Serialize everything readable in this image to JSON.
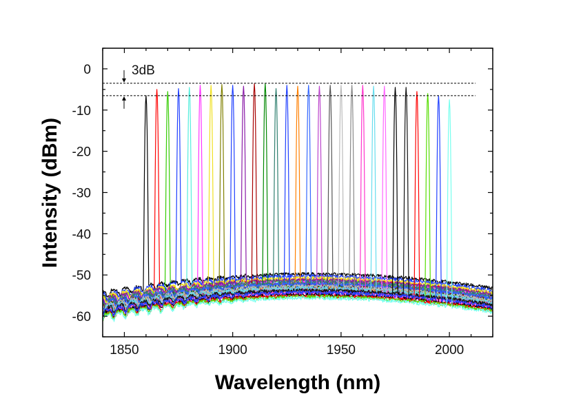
{
  "chart_data": {
    "type": "line",
    "title": "",
    "xlabel": "Wavelength (nm)",
    "ylabel": "Intensity (dBm)",
    "xlim": [
      1840,
      2020
    ],
    "ylim": [
      -65,
      5
    ],
    "x_ticks": [
      1850,
      1900,
      1950,
      2000
    ],
    "y_ticks": [
      0,
      -10,
      -20,
      -30,
      -40,
      -50,
      -60
    ],
    "x_minor_step": 10,
    "y_minor_step": 5,
    "grid": false,
    "annotation": {
      "text": "3dB",
      "upper_level_dbm": -3.5,
      "lower_level_dbm": -6.5,
      "line_x_range": [
        1840,
        2012
      ]
    },
    "series": [
      {
        "name": "1860 nm",
        "center": 1860,
        "peak": -6.5,
        "color": "#000000"
      },
      {
        "name": "1865 nm",
        "center": 1865,
        "peak": -5.0,
        "color": "#ff0000"
      },
      {
        "name": "1870 nm",
        "center": 1870,
        "peak": -5.5,
        "color": "#33cc00"
      },
      {
        "name": "1875 nm",
        "center": 1875,
        "peak": -4.8,
        "color": "#1f3fff"
      },
      {
        "name": "1880 nm",
        "center": 1880,
        "peak": -4.5,
        "color": "#55eedd"
      },
      {
        "name": "1885 nm",
        "center": 1885,
        "peak": -4.0,
        "color": "#ff33ff"
      },
      {
        "name": "1890 nm",
        "center": 1890,
        "peak": -4.0,
        "color": "#f0e020"
      },
      {
        "name": "1895 nm",
        "center": 1895,
        "peak": -3.8,
        "color": "#808000"
      },
      {
        "name": "1900 nm",
        "center": 1900,
        "peak": -4.0,
        "color": "#1f3fff"
      },
      {
        "name": "1905 nm",
        "center": 1905,
        "peak": -4.2,
        "color": "#8a1aa8"
      },
      {
        "name": "1910 nm",
        "center": 1910,
        "peak": -3.6,
        "color": "#a80000"
      },
      {
        "name": "1915 nm",
        "center": 1915,
        "peak": -3.6,
        "color": "#008800"
      },
      {
        "name": "1920 nm",
        "center": 1920,
        "peak": -4.8,
        "color": "#2f7f6f"
      },
      {
        "name": "1925 nm",
        "center": 1925,
        "peak": -4.0,
        "color": "#1f3fff"
      },
      {
        "name": "1930 nm",
        "center": 1930,
        "peak": -4.2,
        "color": "#ff7f00"
      },
      {
        "name": "1935 nm",
        "center": 1935,
        "peak": -4.0,
        "color": "#3366ff"
      },
      {
        "name": "1940 nm",
        "center": 1940,
        "peak": -4.2,
        "color": "#bb44cc"
      },
      {
        "name": "1945 nm",
        "center": 1945,
        "peak": -4.0,
        "color": "#555555"
      },
      {
        "name": "1950 nm",
        "center": 1950,
        "peak": -4.0,
        "color": "#bbbbbb"
      },
      {
        "name": "1955 nm",
        "center": 1955,
        "peak": -4.0,
        "color": "#888888"
      },
      {
        "name": "1960 nm",
        "center": 1960,
        "peak": -4.0,
        "color": "#ff33cc"
      },
      {
        "name": "1965 nm",
        "center": 1965,
        "peak": -4.2,
        "color": "#66ddee"
      },
      {
        "name": "1970 nm",
        "center": 1970,
        "peak": -4.2,
        "color": "#ff66ff"
      },
      {
        "name": "1975 nm",
        "center": 1975,
        "peak": -4.5,
        "color": "#000000"
      },
      {
        "name": "1980 nm",
        "center": 1980,
        "peak": -4.5,
        "color": "#111111"
      },
      {
        "name": "1985 nm",
        "center": 1985,
        "peak": -5.5,
        "color": "#ff0000"
      },
      {
        "name": "1990 nm",
        "center": 1990,
        "peak": -6.0,
        "color": "#55dd00"
      },
      {
        "name": "1995 nm",
        "center": 1995,
        "peak": -6.5,
        "color": "#1f3fff"
      },
      {
        "name": "2000 nm",
        "center": 2000,
        "peak": -7.5,
        "color": "#77ffee"
      }
    ]
  }
}
